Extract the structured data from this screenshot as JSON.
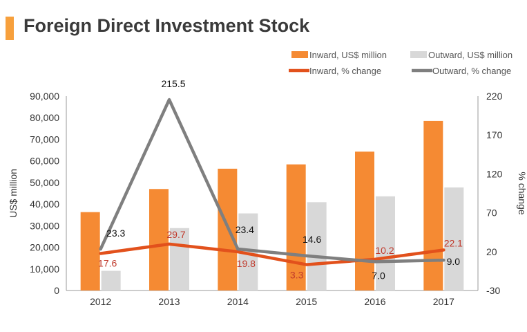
{
  "title": "Foreign Direct Investment Stock",
  "chart_data": {
    "type": "bar+line",
    "title": "Foreign Direct Investment Stock",
    "categories": [
      "2012",
      "2013",
      "2014",
      "2015",
      "2016",
      "2017"
    ],
    "ylabel_left": "US$ million",
    "ylabel_right": "% change",
    "ylim_left": [
      0,
      90000
    ],
    "ylim_right": [
      -30,
      220
    ],
    "yticks_left": [
      "0",
      "10,000",
      "20,000",
      "30,000",
      "40,000",
      "50,000",
      "60,000",
      "70,000",
      "80,000",
      "90,000"
    ],
    "yticks_right": [
      "-30",
      "20",
      "70",
      "120",
      "170",
      "220"
    ],
    "bar_series": [
      {
        "name": "Inward, US$ million",
        "color": "#f58a33",
        "values": [
          36300,
          47000,
          56400,
          58400,
          64300,
          78500
        ]
      },
      {
        "name": "Outward, US$ million",
        "color": "#d8d8d8",
        "values": [
          9100,
          28900,
          35700,
          40900,
          43600,
          47700
        ]
      }
    ],
    "line_series": [
      {
        "name": "Inward, % change",
        "color": "#e2511c",
        "label_color": "#c0392b",
        "values": [
          17.6,
          29.7,
          19.8,
          3.3,
          10.2,
          22.1
        ],
        "labels": [
          "17.6",
          "29.7",
          "19.8",
          "3.3",
          "10.2",
          "22.1"
        ]
      },
      {
        "name": "Outward, % change",
        "color": "#7f7f7f",
        "label_color": "#111111",
        "values": [
          23.3,
          215.5,
          23.4,
          14.6,
          7.0,
          9.0
        ],
        "labels": [
          "23.3",
          "215.5",
          "23.4",
          "14.6",
          "7.0",
          "9.0"
        ]
      }
    ],
    "legend_position": "top-right",
    "grid": false
  }
}
